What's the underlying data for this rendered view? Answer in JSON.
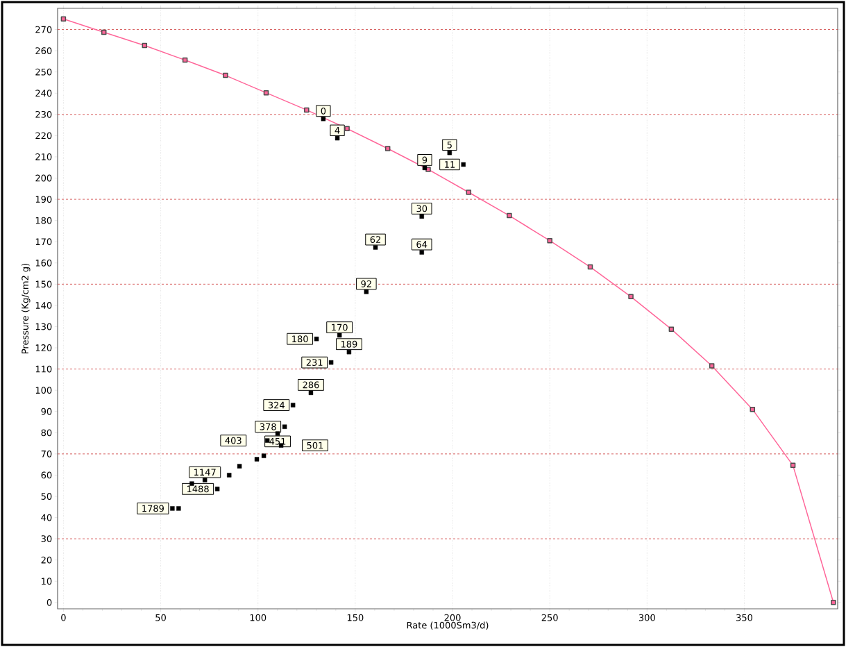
{
  "chart_data": {
    "type": "line",
    "xlabel": "Rate  (1000Sm3/d)",
    "ylabel": "Pressure  (Kg/cm2 g)",
    "xlim": [
      -3,
      398
    ],
    "ylim": [
      -3,
      280
    ],
    "xticks": [
      0,
      50,
      100,
      150,
      200,
      250,
      300,
      350
    ],
    "yticks": [
      0,
      10,
      20,
      30,
      40,
      50,
      60,
      70,
      80,
      90,
      100,
      110,
      120,
      130,
      140,
      150,
      160,
      170,
      180,
      190,
      200,
      210,
      220,
      230,
      240,
      250,
      260,
      270
    ],
    "grid": "x",
    "series": [
      {
        "color": "#ff6699",
        "marker": "square",
        "line_style": "solid",
        "x": [
          0,
          20.8,
          41.7,
          62.5,
          83.3,
          104.2,
          125,
          145.8,
          166.7,
          187.5,
          208.3,
          229.2,
          250,
          270.8,
          291.7,
          312.5,
          333.3,
          354.2,
          375,
          395.8
        ],
        "values": [
          275,
          268.7,
          262.5,
          255.6,
          248.4,
          240.2,
          232.1,
          223.3,
          213.9,
          204.1,
          193.3,
          182.3,
          170.5,
          158.1,
          144.1,
          128.8,
          111.5,
          91,
          64.6,
          0
        ]
      },
      {
        "type": "scatter",
        "color": "#000000",
        "marker": "square",
        "x": [
          133.6,
          140.8,
          198.5,
          205.6,
          185.7,
          184.2,
          160.4,
          184.2,
          155.7,
          141.9,
          130.1,
          146.8,
          137.6,
          127.2,
          118,
          113.7,
          110.1,
          104.8,
          111.9,
          103,
          99.4,
          90.5,
          85.2,
          72.7,
          66,
          79.1,
          56,
          59.2
        ],
        "values": [
          227.9,
          218.8,
          211.9,
          206.4,
          204.8,
          181.9,
          167.3,
          165,
          146.4,
          125.9,
          124.2,
          118,
          113.1,
          98.8,
          93,
          82.8,
          79.6,
          76.3,
          74,
          69.1,
          67.5,
          64.2,
          60,
          57.7,
          56,
          53.5,
          44.3,
          44.3
        ]
      }
    ],
    "ref_lines": [
      {
        "axis": "y",
        "value": 30,
        "color": "#cc3333",
        "line_style": "dashed"
      },
      {
        "axis": "y",
        "value": 70,
        "color": "#cc3333",
        "line_style": "dashed"
      },
      {
        "axis": "y",
        "value": 110,
        "color": "#cc3333",
        "line_style": "dashed"
      },
      {
        "axis": "y",
        "value": 150,
        "color": "#cc3333",
        "line_style": "dashed"
      },
      {
        "axis": "y",
        "value": 190,
        "color": "#cc3333",
        "line_style": "dashed"
      },
      {
        "axis": "y",
        "value": 230,
        "color": "#cc3333",
        "line_style": "dashed"
      },
      {
        "axis": "y",
        "value": 270,
        "color": "#cc3333",
        "line_style": "dashed"
      }
    ],
    "annotations": [
      {
        "text": "0",
        "x": 133.6,
        "y": 227.9
      },
      {
        "text": "4",
        "x": 140.8,
        "y": 218.8
      },
      {
        "text": "5",
        "x": 198.5,
        "y": 211.9
      },
      {
        "text": "11",
        "x": 205.6,
        "y": 206.4
      },
      {
        "text": "9",
        "x": 185.7,
        "y": 204.8
      },
      {
        "text": "30",
        "x": 184.2,
        "y": 181.9
      },
      {
        "text": "62",
        "x": 160.4,
        "y": 167.3
      },
      {
        "text": "64",
        "x": 184.2,
        "y": 165
      },
      {
        "text": "92",
        "x": 155.7,
        "y": 146.4
      },
      {
        "text": "170",
        "x": 141.9,
        "y": 125.9
      },
      {
        "text": "180",
        "x": 130.1,
        "y": 124.2
      },
      {
        "text": "189",
        "x": 146.8,
        "y": 118
      },
      {
        "text": "231",
        "x": 137.6,
        "y": 113.1
      },
      {
        "text": "286",
        "x": 127.2,
        "y": 98.8
      },
      {
        "text": "324",
        "x": 118,
        "y": 93
      },
      {
        "text": "378",
        "x": 113.7,
        "y": 82.8
      },
      {
        "text": "451",
        "x": 110.1,
        "y": 79.6
      },
      {
        "text": "403",
        "x": 104.8,
        "y": 76.3
      },
      {
        "text": "501",
        "x": 111.9,
        "y": 74
      },
      {
        "text": "1147",
        "x": 72.7,
        "y": 57.7
      },
      {
        "text": "1488",
        "x": 79.1,
        "y": 53.5
      },
      {
        "text": "1789",
        "x": 56,
        "y": 44.3
      }
    ]
  }
}
